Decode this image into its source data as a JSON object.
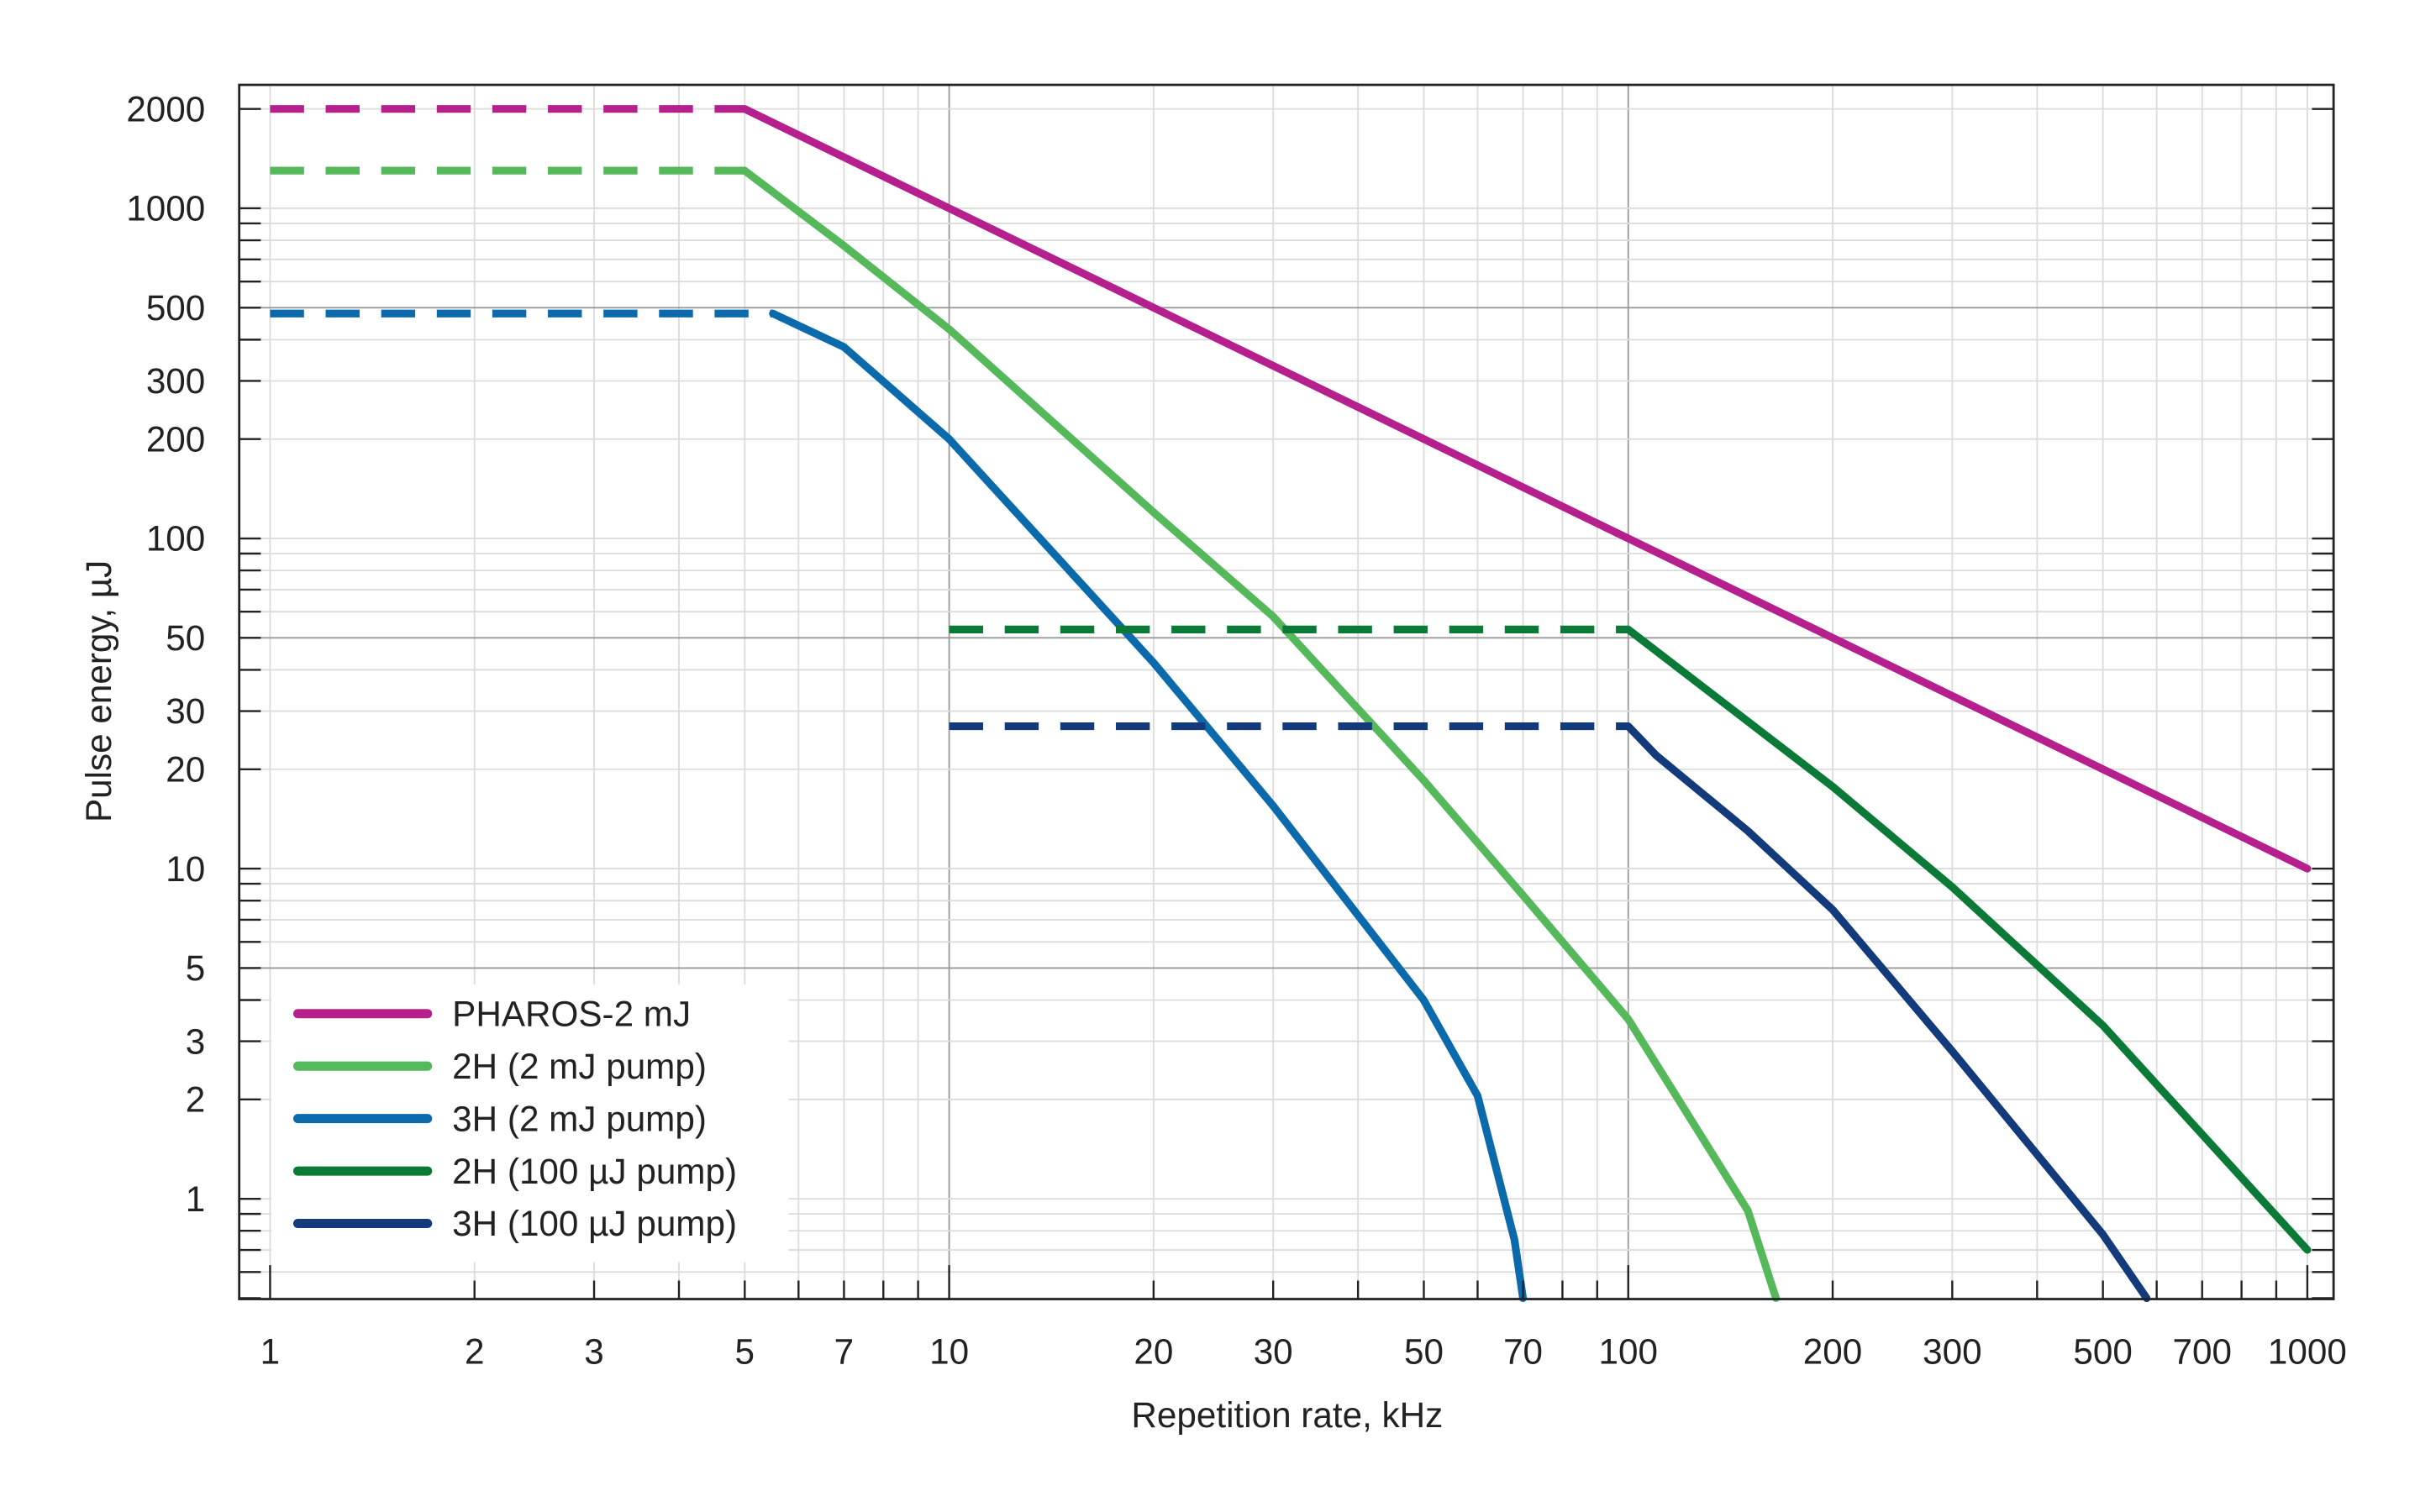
{
  "chart_data": {
    "type": "line",
    "xlabel": "Repetition rate, kHz",
    "ylabel": "Pulse energy, µJ",
    "xscale": "log",
    "yscale": "log",
    "xlim": [
      0.9,
      1090
    ],
    "ylim": [
      0.5,
      2400
    ],
    "xticks": [
      1,
      2,
      3,
      5,
      7,
      10,
      20,
      30,
      50,
      70,
      100,
      200,
      300,
      500,
      700,
      1000
    ],
    "yticks": [
      2000,
      1000,
      500,
      300,
      200,
      100,
      50,
      30,
      20,
      10,
      5,
      3,
      2,
      1
    ],
    "grid": true,
    "legend_position": "bottom-left",
    "series": [
      {
        "name": "PHAROS-2 mJ",
        "color": "#b5208e",
        "dashed": {
          "x": [
            1,
            5
          ],
          "y": [
            2000,
            2000
          ]
        },
        "solid": {
          "x": [
            5,
            10,
            100,
            1000
          ],
          "y": [
            2000,
            1000,
            100,
            10
          ]
        }
      },
      {
        "name": "2H (2 mJ pump)",
        "color": "#55b85a",
        "dashed": {
          "x": [
            1,
            5
          ],
          "y": [
            1300,
            1300
          ]
        },
        "solid": {
          "x": [
            5,
            7,
            10,
            20,
            30,
            50,
            70,
            100,
            150,
            165
          ],
          "y": [
            1300,
            770,
            430,
            120,
            58,
            18.5,
            8.3,
            3.5,
            0.92,
            0.5
          ]
        }
      },
      {
        "name": "3H (2 mJ pump)",
        "color": "#0b6aab",
        "dashed": {
          "x": [
            1,
            5.5
          ],
          "y": [
            480,
            480
          ]
        },
        "solid": {
          "x": [
            5.5,
            7,
            10,
            20,
            30,
            50,
            60,
            68,
            70
          ],
          "y": [
            480,
            380,
            200,
            42,
            15.5,
            4.0,
            2.05,
            0.75,
            0.5
          ]
        }
      },
      {
        "name": "2H (100 µJ pump)",
        "color": "#0a7a36",
        "dashed": {
          "x": [
            10,
            100
          ],
          "y": [
            53,
            53
          ]
        },
        "solid": {
          "x": [
            100,
            200,
            300,
            500,
            1000
          ],
          "y": [
            53,
            17.7,
            8.8,
            3.35,
            0.7
          ]
        }
      },
      {
        "name": "3H (100 µJ pump)",
        "color": "#133b7c",
        "dashed": {
          "x": [
            10,
            100
          ],
          "y": [
            27,
            27
          ]
        },
        "solid": {
          "x": [
            100,
            110,
            150,
            200,
            300,
            500,
            580
          ],
          "y": [
            27,
            22,
            13,
            7.5,
            2.8,
            0.78,
            0.5
          ]
        }
      }
    ]
  }
}
